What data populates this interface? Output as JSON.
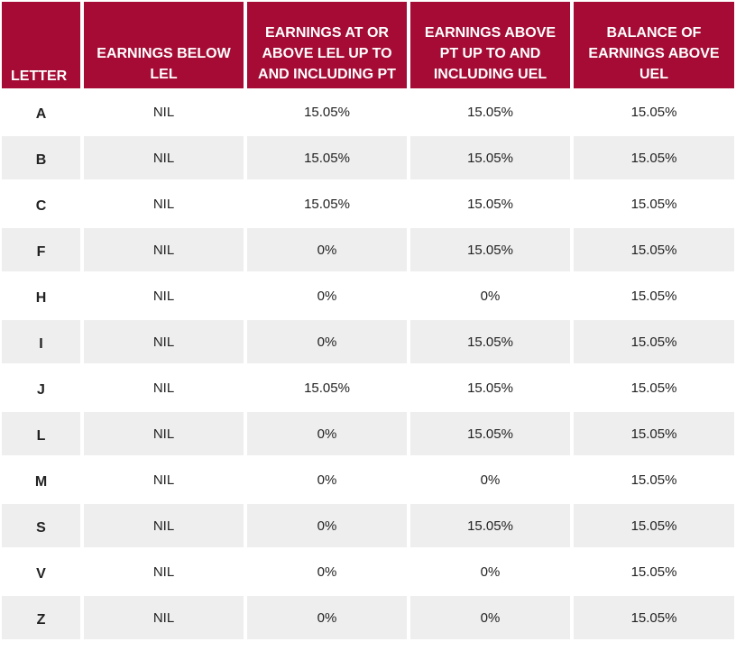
{
  "table": {
    "headers": [
      "LETTER",
      "EARNINGS BELOW LEL",
      "EARNINGS AT OR ABOVE LEL UP TO AND INCLUDING PT",
      "EARNINGS ABOVE PT UP TO AND INCLUDING UEL",
      "BALANCE OF EARNINGS ABOVE UEL"
    ],
    "rows": [
      [
        "A",
        "NIL",
        "15.05%",
        "15.05%",
        "15.05%"
      ],
      [
        "B",
        "NIL",
        "15.05%",
        "15.05%",
        "15.05%"
      ],
      [
        "C",
        "NIL",
        "15.05%",
        "15.05%",
        "15.05%"
      ],
      [
        "F",
        "NIL",
        "0%",
        "15.05%",
        "15.05%"
      ],
      [
        "H",
        "NIL",
        "0%",
        "0%",
        "15.05%"
      ],
      [
        "I",
        "NIL",
        "0%",
        "15.05%",
        "15.05%"
      ],
      [
        "J",
        "NIL",
        "15.05%",
        "15.05%",
        "15.05%"
      ],
      [
        "L",
        "NIL",
        "0%",
        "15.05%",
        "15.05%"
      ],
      [
        "M",
        "NIL",
        "0%",
        "0%",
        "15.05%"
      ],
      [
        "S",
        "NIL",
        "0%",
        "15.05%",
        "15.05%"
      ],
      [
        "V",
        "NIL",
        "0%",
        "0%",
        "15.05%"
      ],
      [
        "Z",
        "NIL",
        "0%",
        "0%",
        "15.05%"
      ]
    ]
  },
  "colors": {
    "header_bg": "#a50b34",
    "header_text": "#ffffff",
    "row_alt_bg": "#eeeeee"
  }
}
